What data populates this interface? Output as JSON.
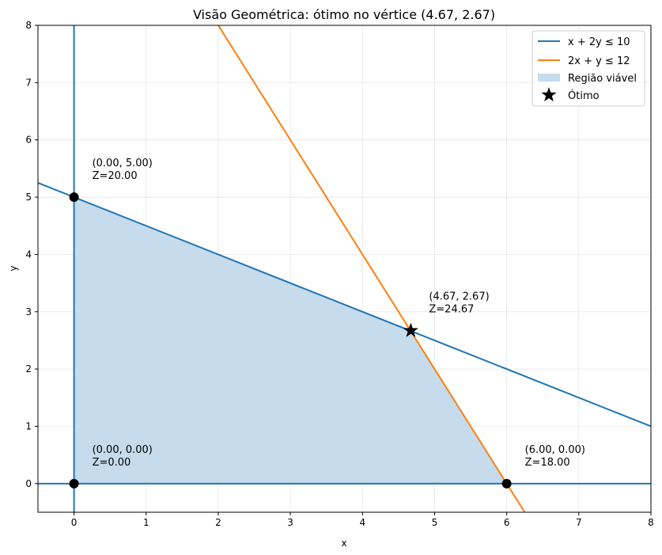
{
  "chart_data": {
    "type": "line",
    "title": "Visão Geométrica: ótimo no vértice (4.67, 2.67)",
    "xlabel": "x",
    "ylabel": "y",
    "xlim": [
      -0.5,
      8
    ],
    "ylim": [
      -0.5,
      8
    ],
    "xticks": [
      0,
      1,
      2,
      3,
      4,
      5,
      6,
      7,
      8
    ],
    "yticks": [
      0,
      1,
      2,
      3,
      4,
      5,
      6,
      7,
      8
    ],
    "grid": true,
    "legend_position": "top-right",
    "series": [
      {
        "name": "x + 2y ≤ 10",
        "color": "#1f77b4",
        "x": [
          -0.5,
          8
        ],
        "y": [
          5.25,
          1
        ]
      },
      {
        "name": "2x + y ≤ 12",
        "color": "#ff7f0e",
        "x": [
          2,
          6.25
        ],
        "y": [
          8,
          -0.5
        ]
      }
    ],
    "axis_lines": [
      {
        "orientation": "vertical",
        "value": 0,
        "color": "#1f77b4"
      },
      {
        "orientation": "horizontal",
        "value": 0,
        "color": "#1f77b4"
      }
    ],
    "feasible_region": {
      "name": "Região viável",
      "color": "#c6dbeb",
      "vertices": [
        [
          0,
          0
        ],
        [
          0,
          5
        ],
        [
          4.67,
          2.67
        ],
        [
          6,
          0
        ]
      ]
    },
    "optimum": {
      "name": "Ótimo",
      "x": 4.67,
      "y": 2.67
    },
    "vertices": [
      {
        "x": 0,
        "y": 5,
        "label1": "(0.00, 5.00)",
        "label2": "Z=20.00"
      },
      {
        "x": 4.67,
        "y": 2.67,
        "label1": "(4.67, 2.67)",
        "label2": "Z=24.67"
      },
      {
        "x": 0,
        "y": 0,
        "label1": "(0.00, 0.00)",
        "label2": "Z=0.00"
      },
      {
        "x": 6,
        "y": 0,
        "label1": "(6.00, 0.00)",
        "label2": "Z=18.00"
      }
    ]
  }
}
